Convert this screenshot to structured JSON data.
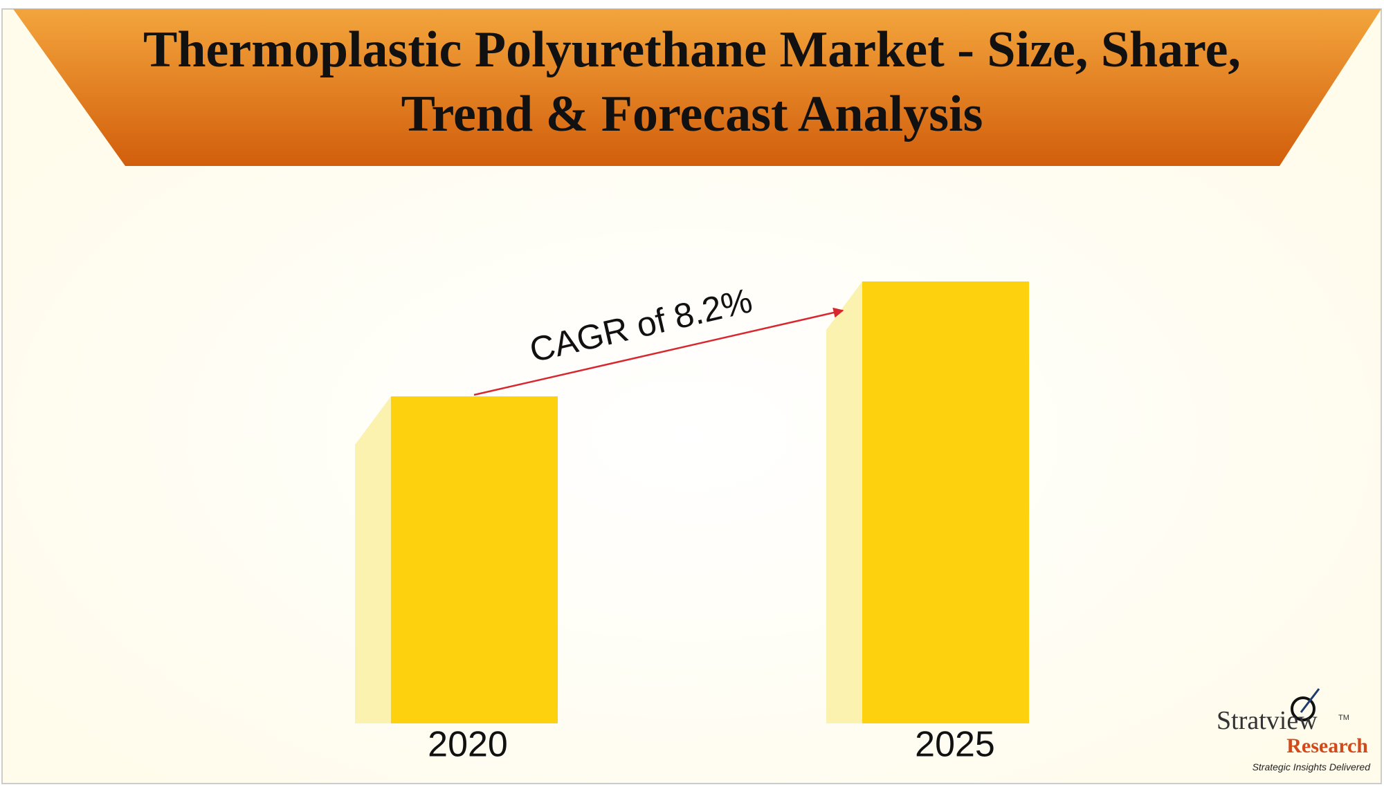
{
  "chart_data": {
    "type": "bar",
    "title": [
      "Thermoplastic Polyurethane Market - Size, Share,",
      "Trend & Forecast Analysis"
    ],
    "categories": [
      "2020",
      "2025"
    ],
    "values": [
      74,
      100
    ],
    "color": "#fdd10e",
    "shade_color": "#faf2ae",
    "annotation": "CAGR of 8.2%",
    "arrow_color": "#d7282f",
    "banner_colors": [
      "#f3a53c",
      "#d25e0c"
    ],
    "logo": {
      "name": "Stratview",
      "trademark": "TM",
      "sub": "Research",
      "tagline": "Strategic Insights Delivered"
    }
  }
}
